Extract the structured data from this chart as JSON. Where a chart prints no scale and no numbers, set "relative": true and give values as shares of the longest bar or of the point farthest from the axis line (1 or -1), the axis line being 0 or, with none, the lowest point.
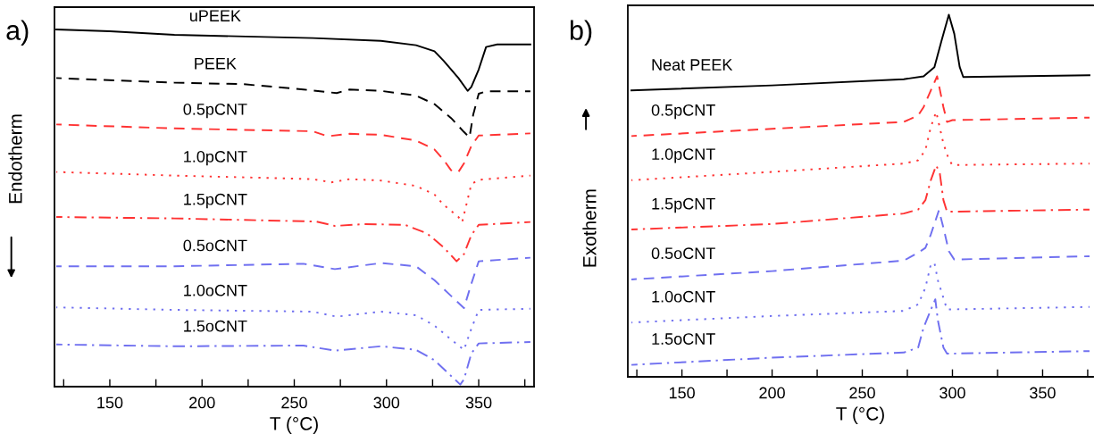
{
  "chart_data": [
    {
      "type": "line",
      "title": "a)",
      "xlabel": "T (°C)",
      "ylabel": "Endotherm",
      "relative": true,
      "legend": false,
      "grid": false,
      "tick_labels": "x",
      "xlim": [
        120,
        380
      ],
      "xticks": [
        {
          "value": 125,
          "label": null
        },
        150,
        {
          "value": 175,
          "label": null
        },
        200,
        {
          "value": 225,
          "label": null
        },
        250,
        {
          "value": 275,
          "label": null
        },
        300,
        {
          "value": 325,
          "label": null
        },
        350,
        {
          "value": 375,
          "label": null
        }
      ],
      "series": [
        {
          "name": "uPEEK",
          "color": "#000000",
          "line_style": "solid",
          "x": [
            121,
            150,
            185,
            260,
            297,
            316,
            326,
            331,
            339,
            344,
            346,
            350,
            354,
            360,
            378
          ],
          "values": [
            1.0,
            0.995,
            0.985,
            0.976,
            0.968,
            0.956,
            0.939,
            0.912,
            0.864,
            0.828,
            0.839,
            0.888,
            0.951,
            0.958,
            0.958
          ]
        },
        {
          "name": "PEEK",
          "color": "#000000",
          "line_style": "dashed",
          "x": [
            121,
            185,
            222,
            255,
            267,
            273,
            280,
            297,
            316,
            326,
            335,
            342,
            345,
            347,
            350,
            354,
            378
          ],
          "values": [
            0.864,
            0.851,
            0.847,
            0.832,
            0.825,
            0.822,
            0.832,
            0.828,
            0.815,
            0.791,
            0.752,
            0.713,
            0.698,
            0.761,
            0.82,
            0.827,
            0.827
          ]
        },
        {
          "name": "0.5pCNT",
          "color": "#ff3333",
          "line_style": "dashed",
          "x": [
            121,
            185,
            260,
            268,
            280,
            297,
            316,
            326,
            331,
            335,
            339,
            342,
            346,
            350,
            378
          ],
          "values": [
            0.734,
            0.723,
            0.715,
            0.701,
            0.708,
            0.705,
            0.689,
            0.664,
            0.635,
            0.606,
            0.601,
            0.625,
            0.674,
            0.703,
            0.709
          ]
        },
        {
          "name": "1.0pCNT",
          "color": "#ff3333",
          "line_style": "dotted",
          "x": [
            121,
            185,
            260,
            270,
            280,
            297,
            316,
            326,
            331,
            339,
            341,
            346,
            350,
            378
          ],
          "values": [
            0.601,
            0.591,
            0.581,
            0.572,
            0.581,
            0.577,
            0.562,
            0.538,
            0.509,
            0.475,
            0.46,
            0.567,
            0.579,
            0.591
          ]
        },
        {
          "name": "1.5pCNT",
          "color": "#ff3333",
          "line_style": "dashdot",
          "x": [
            121,
            185,
            255,
            262,
            272,
            288,
            310,
            322,
            331,
            338,
            342,
            346,
            350,
            378
          ],
          "values": [
            0.475,
            0.471,
            0.463,
            0.462,
            0.45,
            0.455,
            0.453,
            0.429,
            0.39,
            0.351,
            0.371,
            0.424,
            0.453,
            0.461
          ]
        },
        {
          "name": "0.5oCNT",
          "color": "#7070f0",
          "line_style": "dashed",
          "x": [
            121,
            185,
            255,
            272,
            297,
            316,
            326,
            335,
            342,
            346,
            350,
            378
          ],
          "values": [
            0.337,
            0.337,
            0.344,
            0.329,
            0.346,
            0.337,
            0.298,
            0.254,
            0.22,
            0.288,
            0.351,
            0.361
          ]
        },
        {
          "name": "1.0oCNT",
          "color": "#7070f0",
          "line_style": "dotted",
          "x": [
            121,
            185,
            260,
            273,
            297,
            316,
            326,
            335,
            342,
            346,
            350,
            378
          ],
          "values": [
            0.222,
            0.215,
            0.21,
            0.196,
            0.21,
            0.2,
            0.171,
            0.132,
            0.103,
            0.162,
            0.215,
            0.218
          ]
        },
        {
          "name": "1.5oCNT",
          "color": "#7070f0",
          "line_style": "dashdot",
          "x": [
            121,
            185,
            255,
            272,
            297,
            316,
            326,
            335,
            340,
            342,
            346,
            350,
            378
          ],
          "values": [
            0.118,
            0.113,
            0.115,
            0.101,
            0.113,
            0.103,
            0.074,
            0.03,
            0.006,
            0.02,
            0.093,
            0.121,
            0.125
          ]
        }
      ]
    },
    {
      "type": "line",
      "title": "b)",
      "xlabel": "T (°C)",
      "ylabel": "Exotherm",
      "relative": true,
      "legend": false,
      "grid": false,
      "tick_labels": "x",
      "xlim": [
        120,
        378
      ],
      "xticks": [
        {
          "value": 125,
          "label": null
        },
        150,
        {
          "value": 175,
          "label": null
        },
        200,
        {
          "value": 225,
          "label": null
        },
        250,
        {
          "value": 275,
          "label": null
        },
        300,
        {
          "value": 325,
          "label": null
        },
        350,
        {
          "value": 375,
          "label": null
        }
      ],
      "series": [
        {
          "name": "Neat PEEK",
          "color": "#000000",
          "line_style": "solid",
          "x": [
            122,
            200,
            273,
            284,
            290,
            294,
            298,
            301,
            304,
            306,
            376
          ],
          "values": [
            0.791,
            0.805,
            0.822,
            0.83,
            0.855,
            0.929,
            1.0,
            0.948,
            0.856,
            0.828,
            0.833
          ]
        },
        {
          "name": "0.5pCNT",
          "color": "#ff3333",
          "line_style": "dashed",
          "x": [
            122,
            200,
            273,
            281,
            284,
            288,
            291.5,
            295,
            297,
            300,
            376
          ],
          "values": [
            0.665,
            0.685,
            0.704,
            0.722,
            0.745,
            0.791,
            0.83,
            0.745,
            0.704,
            0.709,
            0.716
          ]
        },
        {
          "name": "1.0pCNT",
          "color": "#ff3333",
          "line_style": "dotted",
          "x": [
            122,
            200,
            273,
            281,
            285,
            288,
            291,
            295,
            298,
            300,
            376
          ],
          "values": [
            0.543,
            0.566,
            0.589,
            0.598,
            0.626,
            0.69,
            0.732,
            0.644,
            0.6,
            0.585,
            0.589
          ]
        },
        {
          "name": "1.5pCNT",
          "color": "#ff3333",
          "line_style": "dashdot",
          "x": [
            122,
            200,
            273,
            281,
            285,
            288,
            291,
            293,
            295,
            297,
            376
          ],
          "values": [
            0.407,
            0.422,
            0.451,
            0.462,
            0.488,
            0.543,
            0.584,
            0.562,
            0.488,
            0.456,
            0.462
          ]
        },
        {
          "name": "0.5oCNT",
          "color": "#7070f0",
          "line_style": "dashed",
          "x": [
            122,
            200,
            273,
            281,
            285,
            288,
            292.5,
            295,
            298,
            301,
            376
          ],
          "values": [
            0.269,
            0.292,
            0.321,
            0.343,
            0.356,
            0.393,
            0.46,
            0.412,
            0.347,
            0.324,
            0.333
          ]
        },
        {
          "name": "1.0oCNT",
          "color": "#7070f0",
          "line_style": "dotted",
          "x": [
            122,
            200,
            273,
            281,
            285,
            288,
            290,
            292,
            297,
            376
          ],
          "values": [
            0.15,
            0.168,
            0.182,
            0.2,
            0.246,
            0.31,
            0.315,
            0.265,
            0.186,
            0.193
          ]
        },
        {
          "name": "1.5oCNT",
          "color": "#7070f0",
          "line_style": "dashdot",
          "x": [
            122,
            200,
            273,
            281,
            284,
            288.5,
            290.5,
            292,
            295,
            297,
            376
          ],
          "values": [
            0.033,
            0.053,
            0.067,
            0.081,
            0.136,
            0.191,
            0.214,
            0.154,
            0.081,
            0.064,
            0.071
          ]
        }
      ]
    }
  ]
}
